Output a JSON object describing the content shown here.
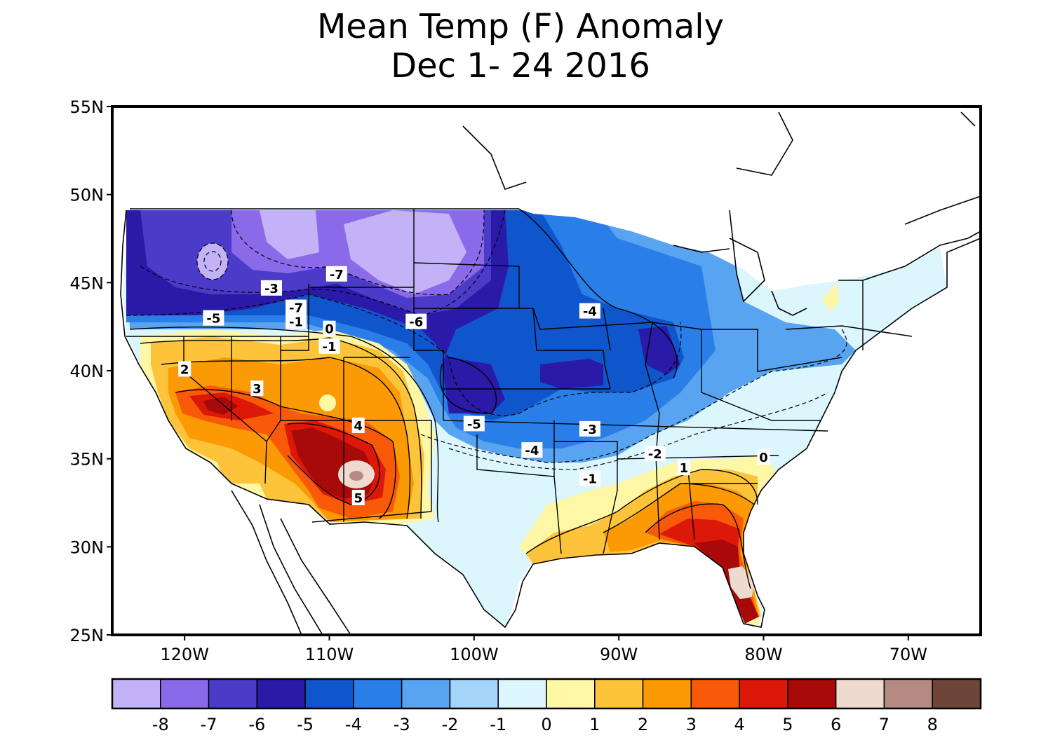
{
  "title": {
    "line1": "Mean Temp (F) Anomaly",
    "line2": "Dec 1- 24 2016"
  },
  "map": {
    "extent": {
      "lon": [
        -125,
        -65
      ],
      "lat": [
        25,
        55
      ]
    },
    "lat_ticks": [
      {
        "lat": 55,
        "label": "55N"
      },
      {
        "lat": 50,
        "label": "50N"
      },
      {
        "lat": 45,
        "label": "45N"
      },
      {
        "lat": 40,
        "label": "40N"
      },
      {
        "lat": 35,
        "label": "35N"
      },
      {
        "lat": 30,
        "label": "30N"
      },
      {
        "lat": 25,
        "label": "25N"
      }
    ],
    "lon_ticks": [
      {
        "lon": -120,
        "label": "120W"
      },
      {
        "lon": -110,
        "label": "110W"
      },
      {
        "lon": -100,
        "label": "100W"
      },
      {
        "lon": -90,
        "label": "90W"
      },
      {
        "lon": -80,
        "label": "80W"
      },
      {
        "lon": -70,
        "label": "70W"
      }
    ],
    "contour_labels": [
      {
        "text": "-3",
        "lon": -114,
        "lat": 44.7
      },
      {
        "text": "-7",
        "lon": -109.5,
        "lat": 45.5
      },
      {
        "text": "-5",
        "lon": -118,
        "lat": 43.0
      },
      {
        "text": "-7",
        "lon": -112.3,
        "lat": 43.6
      },
      {
        "text": "-1",
        "lon": -112.3,
        "lat": 42.8
      },
      {
        "text": "0",
        "lon": -110,
        "lat": 42.4
      },
      {
        "text": "-1",
        "lon": -110,
        "lat": 41.4
      },
      {
        "text": "-6",
        "lon": -104,
        "lat": 42.8
      },
      {
        "text": "-4",
        "lon": -92,
        "lat": 43.4
      },
      {
        "text": "2",
        "lon": -120,
        "lat": 40.1
      },
      {
        "text": "3",
        "lon": -115,
        "lat": 39.0
      },
      {
        "text": "4",
        "lon": -108,
        "lat": 36.9
      },
      {
        "text": "5",
        "lon": -108,
        "lat": 32.8
      },
      {
        "text": "-5",
        "lon": -100,
        "lat": 37.0
      },
      {
        "text": "-3",
        "lon": -92,
        "lat": 36.7
      },
      {
        "text": "-4",
        "lon": -96,
        "lat": 35.5
      },
      {
        "text": "-2",
        "lon": -87.5,
        "lat": 35.3
      },
      {
        "text": "1",
        "lon": -85.5,
        "lat": 34.5
      },
      {
        "text": "0",
        "lon": -80,
        "lat": 35.1
      },
      {
        "text": "-1",
        "lon": -92,
        "lat": 33.9
      }
    ]
  },
  "legend": {
    "bins": [
      {
        "color": "#c4b2f8"
      },
      {
        "color": "#8a6ae8"
      },
      {
        "color": "#4a3cc8"
      },
      {
        "color": "#2a1aa8"
      },
      {
        "color": "#0f55cc"
      },
      {
        "color": "#2a7ee8"
      },
      {
        "color": "#58a4f0"
      },
      {
        "color": "#a4d4fa"
      },
      {
        "color": "#dcf6fe"
      },
      {
        "color": "#fdf7a6"
      },
      {
        "color": "#fdc43b"
      },
      {
        "color": "#fc9a06"
      },
      {
        "color": "#f85a0a"
      },
      {
        "color": "#dc1808"
      },
      {
        "color": "#a80a0a"
      },
      {
        "color": "#efdad0"
      },
      {
        "color": "#b48a82"
      },
      {
        "color": "#6e4638"
      }
    ],
    "tick_labels": [
      "-8",
      "-7",
      "-6",
      "-5",
      "-4",
      "-3",
      "-2",
      "-1",
      "0",
      "1",
      "2",
      "3",
      "4",
      "5",
      "6",
      "7",
      "8"
    ]
  }
}
